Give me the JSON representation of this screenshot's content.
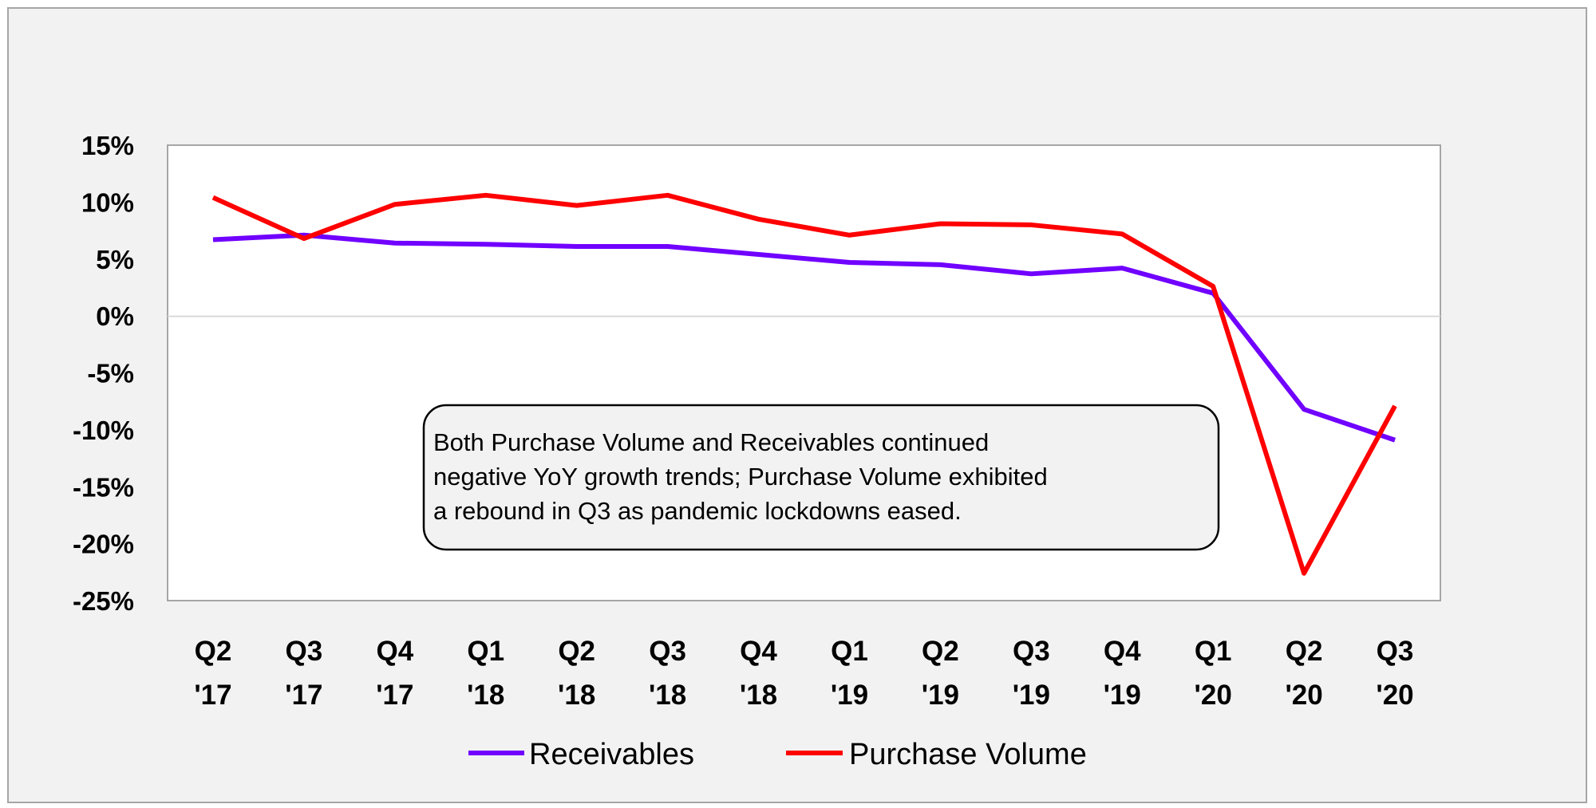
{
  "chart_data": {
    "type": "line",
    "categories": [
      [
        "Q2",
        "'17"
      ],
      [
        "Q3",
        "'17"
      ],
      [
        "Q4",
        "'17"
      ],
      [
        "Q1",
        "'18"
      ],
      [
        "Q2",
        "'18"
      ],
      [
        "Q3",
        "'18"
      ],
      [
        "Q4",
        "'18"
      ],
      [
        "Q1",
        "'19"
      ],
      [
        "Q2",
        "'19"
      ],
      [
        "Q3",
        "'19"
      ],
      [
        "Q4",
        "'19"
      ],
      [
        "Q1",
        "'20"
      ],
      [
        "Q2",
        "'20"
      ],
      [
        "Q3",
        "'20"
      ]
    ],
    "ylim": [
      -25,
      15
    ],
    "yticks": [
      15,
      10,
      5,
      0,
      -5,
      -10,
      -15,
      -20,
      -25
    ],
    "ytick_labels": [
      "15%",
      "10%",
      "5%",
      "0%",
      "-5%",
      "-10%",
      "-15%",
      "-20%",
      "-25%"
    ],
    "grid": "zero line only",
    "legend_position": "bottom",
    "series": [
      {
        "name": "Receivables",
        "color": "#7000ff",
        "values": [
          6.7,
          7.1,
          6.4,
          6.3,
          6.1,
          6.1,
          5.4,
          4.7,
          4.5,
          3.7,
          4.2,
          2.0,
          -8.2,
          -10.9
        ]
      },
      {
        "name": "Purchase Volume",
        "color": "#ff0000",
        "values": [
          10.4,
          6.8,
          9.8,
          10.6,
          9.7,
          10.6,
          8.5,
          7.1,
          8.1,
          8.0,
          7.2,
          2.6,
          -22.6,
          -7.9
        ]
      }
    ],
    "annotation": [
      "Both Purchase Volume and Receivables continued",
      "negative YoY growth trends; Purchase Volume exhibited",
      "a rebound in Q3 as pandemic lockdowns eased."
    ]
  }
}
